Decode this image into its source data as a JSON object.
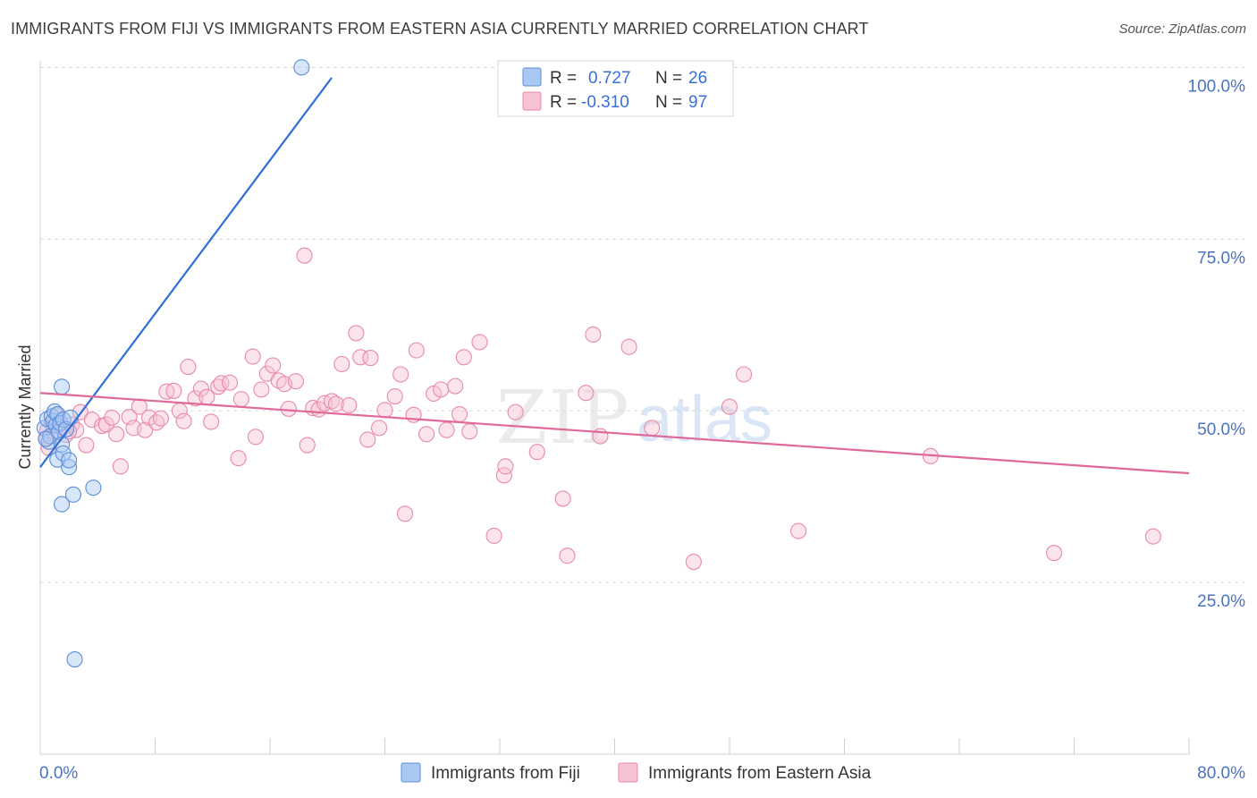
{
  "title": "IMMIGRANTS FROM FIJI VS IMMIGRANTS FROM EASTERN ASIA CURRENTLY MARRIED CORRELATION CHART",
  "source": "Source: ZipAtlas.com",
  "watermark": {
    "zip": "ZIP",
    "atlas": "atlas"
  },
  "colors": {
    "fiji_fill": "#a9c8f3",
    "fiji_stroke": "#5b8fd8",
    "fiji_line": "#2f6fd6",
    "asia_fill": "#f6c3d3",
    "asia_stroke": "#e889a8",
    "asia_line": "#e0699a",
    "tick_label": "#4a72c4",
    "grid": "#d9d9d9"
  },
  "legend": {
    "rows": [
      {
        "r_label": "R =",
        "r_value": "0.727",
        "n_label": "N =",
        "n_value": "26",
        "series": "fiji"
      },
      {
        "r_label": "R =",
        "r_value": "-0.310",
        "n_label": "N =",
        "n_value": "97",
        "series": "asia"
      }
    ]
  },
  "chart_data": {
    "type": "scatter",
    "title": "IMMIGRANTS FROM FIJI VS IMMIGRANTS FROM EASTERN ASIA CURRENTLY MARRIED CORRELATION CHART",
    "xlabel": "",
    "ylabel": "Currently Married",
    "xlim": [
      0,
      80
    ],
    "ylim": [
      0,
      102
    ],
    "x_tick_labels": [
      "0.0%",
      "80.0%"
    ],
    "y_tick_labels": [
      "25.0%",
      "50.0%",
      "75.0%",
      "100.0%"
    ],
    "y_ticks": [
      25,
      50,
      75,
      100
    ],
    "grid": true,
    "legend_position": "bottom",
    "series": [
      {
        "name": "Immigrants from Fiji",
        "key": "fiji",
        "trendline": {
          "x": [
            0.0,
            20.3
          ],
          "y": [
            41.8,
            98.5
          ]
        },
        "points": [
          {
            "x": 0.3,
            "y": 47.5
          },
          {
            "x": 0.5,
            "y": 48.8
          },
          {
            "x": 0.6,
            "y": 45.5
          },
          {
            "x": 0.7,
            "y": 46.3
          },
          {
            "x": 0.8,
            "y": 49.2
          },
          {
            "x": 0.9,
            "y": 48.5
          },
          {
            "x": 1.0,
            "y": 49.9
          },
          {
            "x": 1.1,
            "y": 47.9
          },
          {
            "x": 1.2,
            "y": 49.5
          },
          {
            "x": 1.3,
            "y": 46.9
          },
          {
            "x": 1.4,
            "y": 48.2
          },
          {
            "x": 1.5,
            "y": 45.1
          },
          {
            "x": 1.6,
            "y": 48.7
          },
          {
            "x": 1.8,
            "y": 47.3
          },
          {
            "x": 1.2,
            "y": 42.9
          },
          {
            "x": 1.6,
            "y": 43.8
          },
          {
            "x": 2.0,
            "y": 41.8
          },
          {
            "x": 2.0,
            "y": 42.8
          },
          {
            "x": 2.1,
            "y": 49.0
          },
          {
            "x": 1.5,
            "y": 53.5
          },
          {
            "x": 1.5,
            "y": 36.4
          },
          {
            "x": 2.3,
            "y": 37.8
          },
          {
            "x": 3.7,
            "y": 38.8
          },
          {
            "x": 2.4,
            "y": 13.8
          },
          {
            "x": 18.2,
            "y": 100.0
          },
          {
            "x": 0.4,
            "y": 45.9
          }
        ]
      },
      {
        "name": "Immigrants from Eastern Asia",
        "key": "asia",
        "trendline": {
          "x": [
            0.0,
            80.0
          ],
          "y": [
            52.6,
            40.9
          ]
        },
        "points": [
          {
            "x": 0.4,
            "y": 46.0
          },
          {
            "x": 0.5,
            "y": 47.1
          },
          {
            "x": 0.6,
            "y": 44.6
          },
          {
            "x": 0.8,
            "y": 48.2
          },
          {
            "x": 1.0,
            "y": 46.8
          },
          {
            "x": 1.2,
            "y": 49.3
          },
          {
            "x": 1.5,
            "y": 47.6
          },
          {
            "x": 1.8,
            "y": 46.5
          },
          {
            "x": 2.2,
            "y": 48.0
          },
          {
            "x": 2.5,
            "y": 47.2
          },
          {
            "x": 2.8,
            "y": 49.8
          },
          {
            "x": 3.2,
            "y": 45.0
          },
          {
            "x": 3.6,
            "y": 48.7
          },
          {
            "x": 4.3,
            "y": 47.8
          },
          {
            "x": 4.6,
            "y": 48.0
          },
          {
            "x": 5.0,
            "y": 49.0
          },
          {
            "x": 5.3,
            "y": 46.6
          },
          {
            "x": 5.6,
            "y": 41.9
          },
          {
            "x": 6.2,
            "y": 49.1
          },
          {
            "x": 6.5,
            "y": 47.5
          },
          {
            "x": 6.9,
            "y": 50.6
          },
          {
            "x": 7.3,
            "y": 47.2
          },
          {
            "x": 7.6,
            "y": 49.0
          },
          {
            "x": 8.1,
            "y": 48.3
          },
          {
            "x": 8.4,
            "y": 48.9
          },
          {
            "x": 8.8,
            "y": 52.8
          },
          {
            "x": 9.3,
            "y": 52.9
          },
          {
            "x": 9.7,
            "y": 50.0
          },
          {
            "x": 10.0,
            "y": 48.5
          },
          {
            "x": 10.3,
            "y": 56.4
          },
          {
            "x": 10.8,
            "y": 51.8
          },
          {
            "x": 11.2,
            "y": 53.2
          },
          {
            "x": 11.6,
            "y": 52.0
          },
          {
            "x": 11.9,
            "y": 48.4
          },
          {
            "x": 12.4,
            "y": 53.5
          },
          {
            "x": 12.6,
            "y": 54.0
          },
          {
            "x": 13.2,
            "y": 54.1
          },
          {
            "x": 13.8,
            "y": 43.1
          },
          {
            "x": 14.0,
            "y": 51.7
          },
          {
            "x": 14.8,
            "y": 57.9
          },
          {
            "x": 15.0,
            "y": 46.2
          },
          {
            "x": 15.4,
            "y": 53.1
          },
          {
            "x": 15.8,
            "y": 55.4
          },
          {
            "x": 16.2,
            "y": 56.6
          },
          {
            "x": 16.6,
            "y": 54.4
          },
          {
            "x": 17.0,
            "y": 53.9
          },
          {
            "x": 17.3,
            "y": 50.3
          },
          {
            "x": 17.8,
            "y": 54.3
          },
          {
            "x": 18.4,
            "y": 72.6
          },
          {
            "x": 18.6,
            "y": 45.0
          },
          {
            "x": 19.0,
            "y": 50.4
          },
          {
            "x": 19.4,
            "y": 50.2
          },
          {
            "x": 19.8,
            "y": 51.1
          },
          {
            "x": 20.3,
            "y": 51.4
          },
          {
            "x": 20.6,
            "y": 51.0
          },
          {
            "x": 21.0,
            "y": 56.8
          },
          {
            "x": 21.5,
            "y": 50.8
          },
          {
            "x": 22.0,
            "y": 61.3
          },
          {
            "x": 22.3,
            "y": 57.8
          },
          {
            "x": 22.8,
            "y": 45.8
          },
          {
            "x": 23.0,
            "y": 57.7
          },
          {
            "x": 23.6,
            "y": 47.5
          },
          {
            "x": 24.0,
            "y": 50.1
          },
          {
            "x": 24.7,
            "y": 52.1
          },
          {
            "x": 25.1,
            "y": 55.3
          },
          {
            "x": 25.4,
            "y": 35.0
          },
          {
            "x": 26.0,
            "y": 49.4
          },
          {
            "x": 26.2,
            "y": 58.8
          },
          {
            "x": 26.9,
            "y": 46.6
          },
          {
            "x": 27.4,
            "y": 52.5
          },
          {
            "x": 27.9,
            "y": 53.1
          },
          {
            "x": 28.3,
            "y": 47.2
          },
          {
            "x": 28.9,
            "y": 53.6
          },
          {
            "x": 29.2,
            "y": 49.5
          },
          {
            "x": 29.5,
            "y": 57.8
          },
          {
            "x": 29.9,
            "y": 47.0
          },
          {
            "x": 30.6,
            "y": 60.0
          },
          {
            "x": 31.6,
            "y": 31.8
          },
          {
            "x": 32.3,
            "y": 40.6
          },
          {
            "x": 32.4,
            "y": 41.9
          },
          {
            "x": 33.1,
            "y": 49.8
          },
          {
            "x": 34.6,
            "y": 44.0
          },
          {
            "x": 36.4,
            "y": 37.2
          },
          {
            "x": 36.7,
            "y": 28.9
          },
          {
            "x": 38.0,
            "y": 52.6
          },
          {
            "x": 38.5,
            "y": 61.1
          },
          {
            "x": 39.0,
            "y": 46.3
          },
          {
            "x": 41.0,
            "y": 59.3
          },
          {
            "x": 42.6,
            "y": 47.5
          },
          {
            "x": 45.5,
            "y": 28.0
          },
          {
            "x": 48.0,
            "y": 50.6
          },
          {
            "x": 49.0,
            "y": 55.3
          },
          {
            "x": 52.8,
            "y": 32.5
          },
          {
            "x": 62.0,
            "y": 43.4
          },
          {
            "x": 70.6,
            "y": 29.3
          },
          {
            "x": 77.5,
            "y": 31.7
          },
          {
            "x": 2.0,
            "y": 47.0
          }
        ]
      }
    ]
  }
}
